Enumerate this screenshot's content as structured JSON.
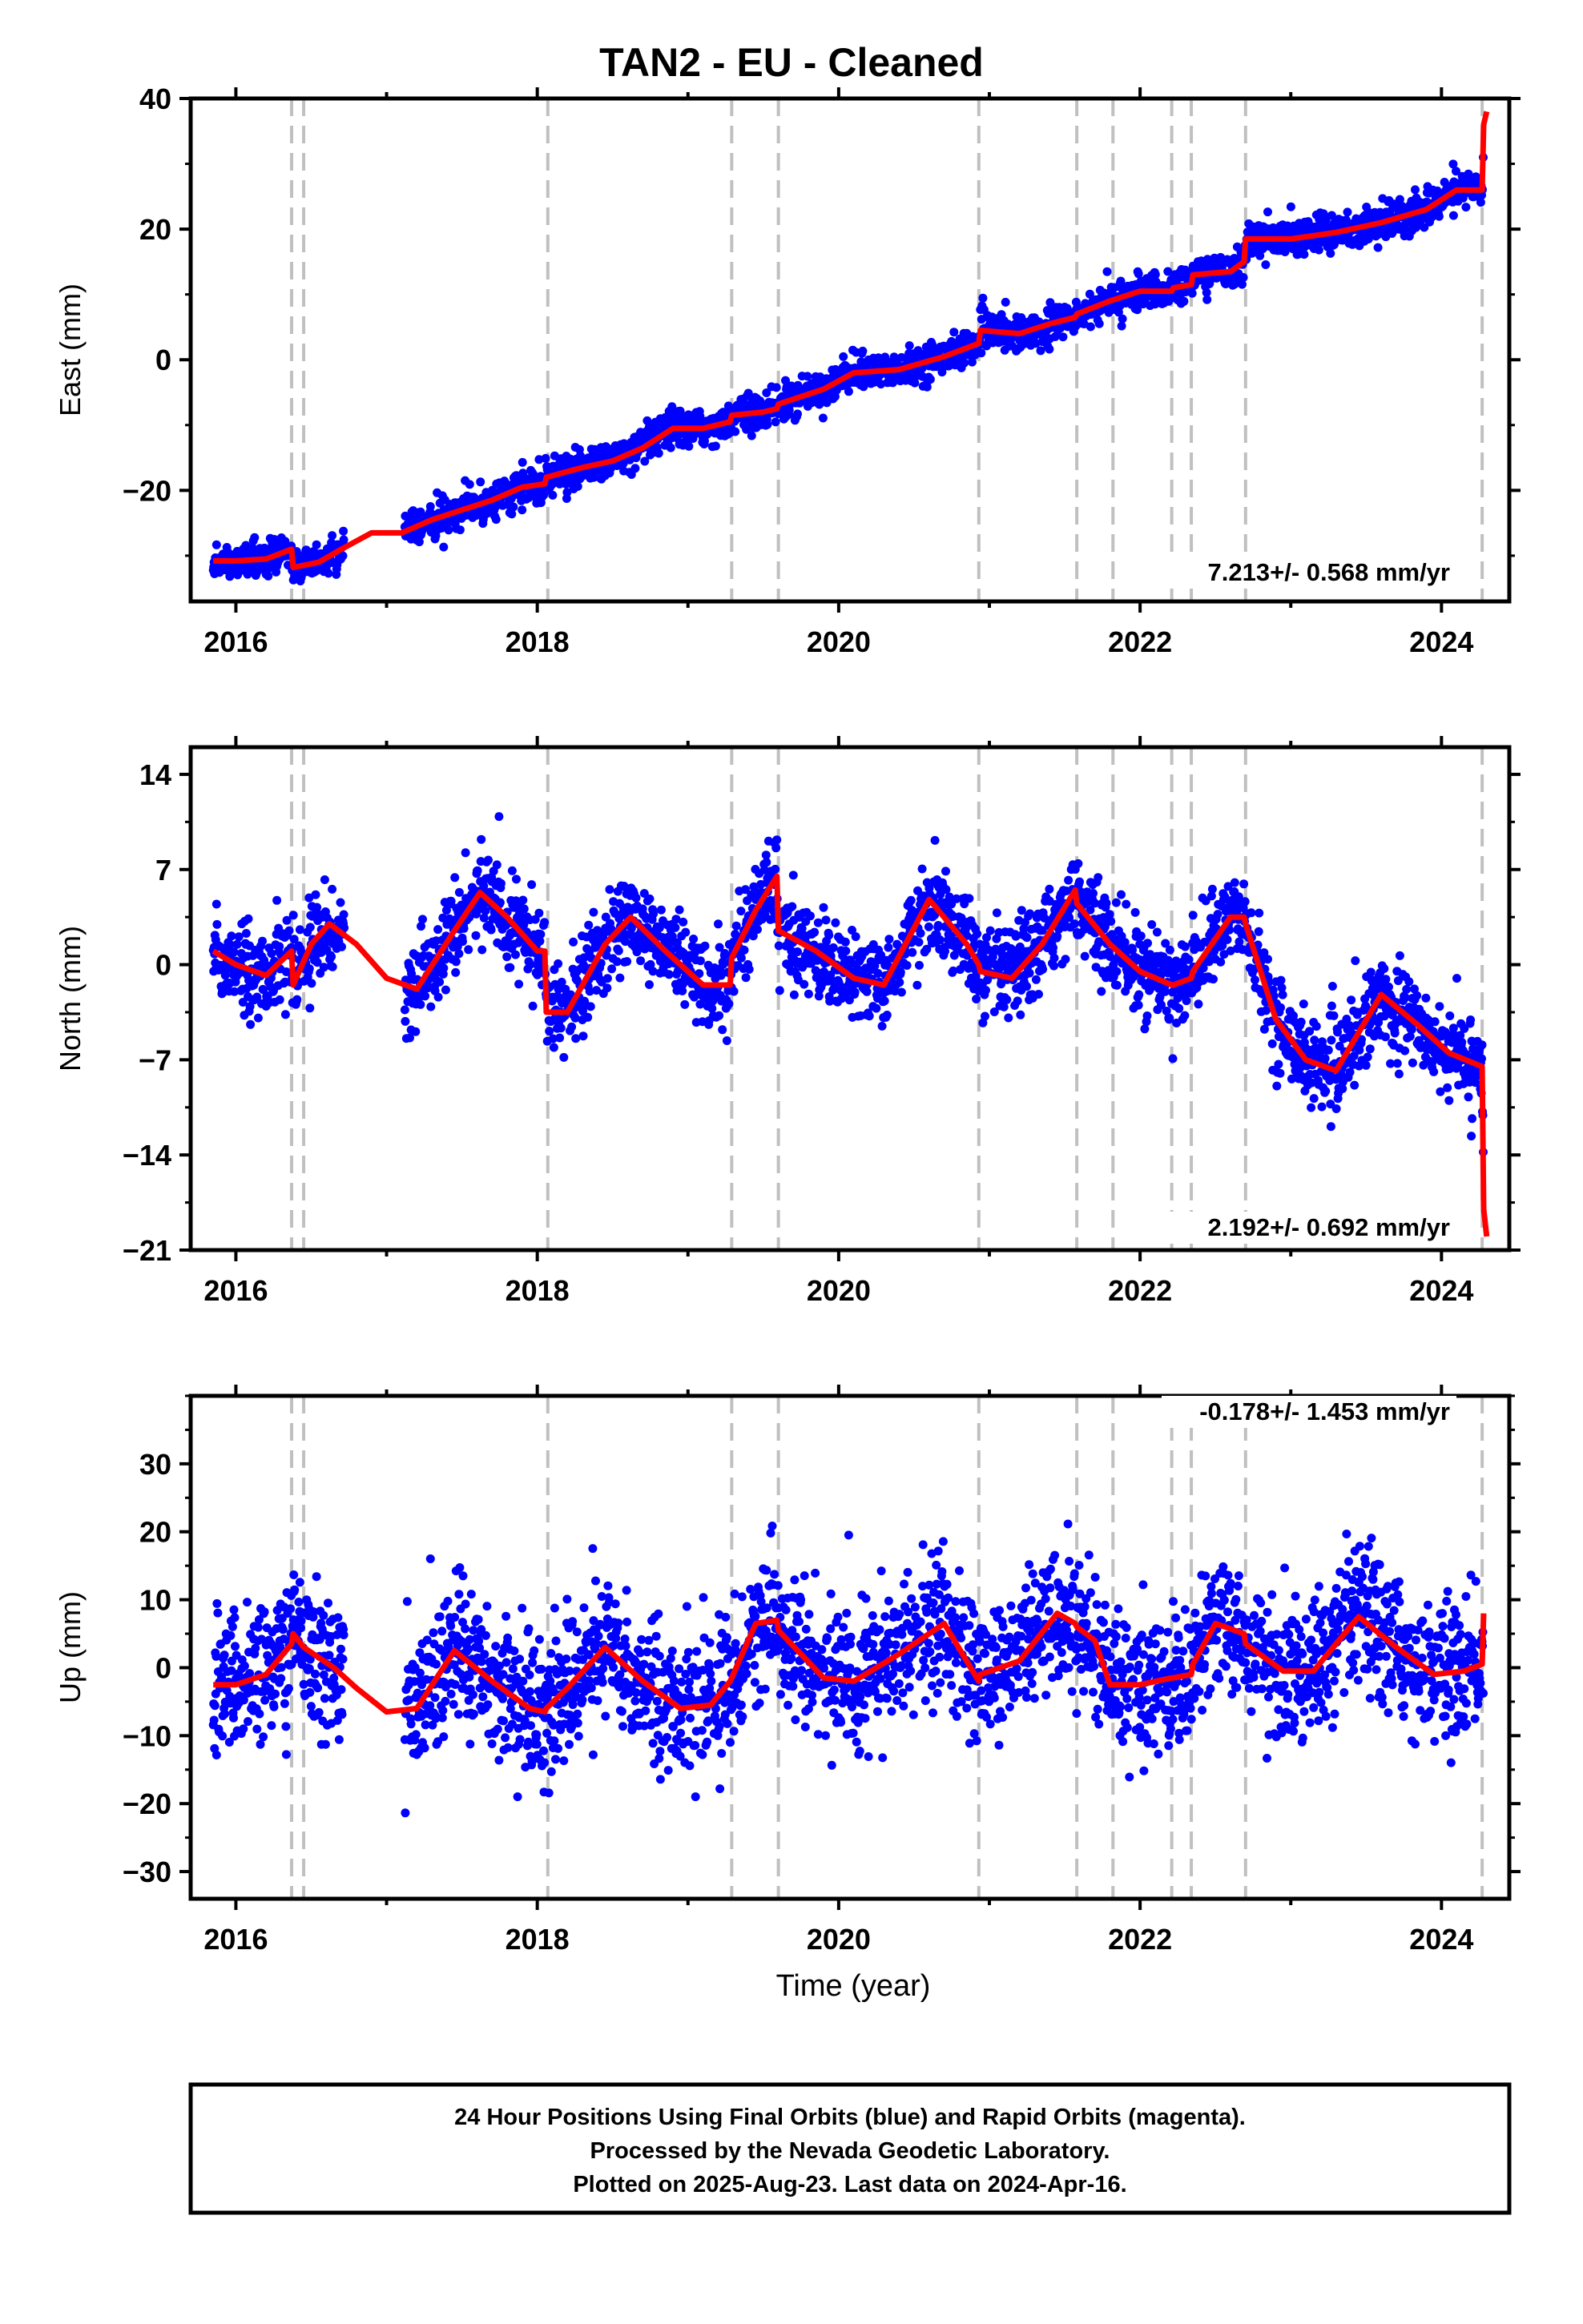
{
  "title": "TAN2  - EU - Cleaned",
  "colors": {
    "final_orbits": "#0000ff",
    "model": "#ff0000",
    "events": "#c0c0c0"
  },
  "chart_data": [
    {
      "type": "scatter",
      "ylabel": "East (mm)",
      "ylim": [
        -37,
        40
      ],
      "yticks": [
        -20,
        0,
        20,
        40
      ],
      "xlim": [
        2015.7,
        2024.45
      ],
      "xticks": [
        2016,
        2018,
        2020,
        2022,
        2024
      ],
      "rate_label": "7.213+/- 0.568 mm/yr",
      "series": [
        {
          "kind": "model",
          "x": [
            2015.85,
            2016.0,
            2016.2,
            2016.37,
            2016.38,
            2016.55,
            2016.7,
            2016.9,
            2017.1,
            2017.3,
            2017.5,
            2017.7,
            2017.9,
            2018.05,
            2018.06,
            2018.3,
            2018.5,
            2018.7,
            2018.9,
            2019.1,
            2019.28,
            2019.29,
            2019.5,
            2019.59,
            2019.6,
            2019.9,
            2020.1,
            2020.4,
            2020.7,
            2020.93,
            2020.94,
            2021.2,
            2021.4,
            2021.57,
            2021.58,
            2021.8,
            2022.0,
            2022.21,
            2022.22,
            2022.34,
            2022.35,
            2022.6,
            2022.69,
            2022.7,
            2023.0,
            2023.3,
            2023.6,
            2023.9,
            2024.1,
            2024.27,
            2024.28,
            2024.3
          ],
          "y": [
            -30.8,
            -30.8,
            -30.5,
            -29.0,
            -31.8,
            -31.0,
            -29.0,
            -26.5,
            -26.5,
            -24.5,
            -23.0,
            -21.5,
            -19.5,
            -19.0,
            -18.0,
            -16.5,
            -15.5,
            -13.5,
            -10.5,
            -10.5,
            -9.5,
            -8.5,
            -8.0,
            -7.5,
            -6.8,
            -4.5,
            -2.0,
            -1.5,
            0.5,
            2.5,
            4.5,
            4.0,
            5.5,
            6.5,
            7.0,
            9.0,
            10.5,
            10.5,
            11.0,
            11.5,
            13.0,
            13.5,
            15.0,
            18.5,
            18.5,
            19.5,
            21.0,
            23.0,
            26.0,
            26.0,
            36.0,
            38.0
          ]
        }
      ]
    },
    {
      "type": "scatter",
      "ylabel": "North (mm)",
      "ylim": [
        -21,
        16
      ],
      "yticks": [
        -21,
        -14,
        -7,
        0,
        7,
        14
      ],
      "xlim": [
        2015.7,
        2024.45
      ],
      "xticks": [
        2016,
        2018,
        2020,
        2022,
        2024
      ],
      "rate_label": "2.192+/- 0.692 mm/yr",
      "series": [
        {
          "kind": "model",
          "x": [
            2015.85,
            2016.0,
            2016.2,
            2016.37,
            2016.38,
            2016.5,
            2016.62,
            2016.8,
            2017.0,
            2017.2,
            2017.45,
            2017.62,
            2017.8,
            2018.0,
            2018.05,
            2018.06,
            2018.2,
            2018.45,
            2018.62,
            2018.85,
            2019.1,
            2019.28,
            2019.29,
            2019.45,
            2019.59,
            2019.6,
            2019.85,
            2020.1,
            2020.3,
            2020.6,
            2020.85,
            2020.93,
            2020.94,
            2021.15,
            2021.35,
            2021.57,
            2021.58,
            2021.8,
            2022.0,
            2022.21,
            2022.22,
            2022.34,
            2022.35,
            2022.6,
            2022.69,
            2022.7,
            2022.9,
            2023.1,
            2023.3,
            2023.6,
            2023.85,
            2024.05,
            2024.27,
            2024.28,
            2024.3
          ],
          "y": [
            1.0,
            0.0,
            -0.8,
            1.0,
            -1.5,
            1.5,
            3.0,
            1.5,
            -1.0,
            -1.8,
            2.5,
            5.3,
            3.5,
            1.0,
            1.0,
            -3.5,
            -3.5,
            1.5,
            3.5,
            1.0,
            -1.5,
            -1.5,
            0.5,
            4.0,
            6.5,
            2.5,
            1.0,
            -1.0,
            -1.5,
            4.8,
            1.5,
            0.0,
            -0.5,
            -1.0,
            1.5,
            5.5,
            4.5,
            1.5,
            -0.5,
            -1.5,
            -1.5,
            -1.0,
            -0.5,
            3.5,
            3.5,
            3.0,
            -4.0,
            -7.0,
            -7.8,
            -2.2,
            -4.5,
            -6.5,
            -7.5,
            -18.0,
            -20.0
          ]
        }
      ]
    },
    {
      "type": "scatter",
      "ylabel": "Up (mm)",
      "ylim": [
        -34,
        40
      ],
      "yticks": [
        -30,
        -20,
        -10,
        0,
        10,
        20,
        30
      ],
      "xlim": [
        2015.7,
        2024.45
      ],
      "xticks": [
        2016,
        2018,
        2020,
        2022,
        2024
      ],
      "rate_label": "-0.178+/- 1.453 mm/yr",
      "series": [
        {
          "kind": "model",
          "x": [
            2015.85,
            2016.0,
            2016.2,
            2016.37,
            2016.38,
            2016.45,
            2016.65,
            2016.8,
            2017.0,
            2017.2,
            2017.45,
            2017.7,
            2017.95,
            2018.05,
            2018.06,
            2018.2,
            2018.45,
            2018.7,
            2018.95,
            2019.15,
            2019.28,
            2019.29,
            2019.45,
            2019.59,
            2019.6,
            2019.9,
            2020.1,
            2020.4,
            2020.7,
            2020.93,
            2020.94,
            2021.2,
            2021.45,
            2021.57,
            2021.58,
            2021.7,
            2021.8,
            2022.0,
            2022.21,
            2022.22,
            2022.34,
            2022.35,
            2022.5,
            2022.69,
            2022.7,
            2022.95,
            2023.15,
            2023.45,
            2023.7,
            2023.95,
            2024.15,
            2024.27,
            2024.28
          ],
          "y": [
            -2.5,
            -2.5,
            -1.0,
            3.5,
            5.0,
            3.0,
            0.0,
            -3.0,
            -6.5,
            -6.0,
            2.5,
            -2.0,
            -6.0,
            -6.5,
            -6.0,
            -3.0,
            3.0,
            -2.0,
            -6.0,
            -5.5,
            -2.0,
            -1.5,
            6.5,
            7.0,
            5.5,
            -1.5,
            -2.0,
            2.0,
            6.5,
            -2.0,
            -1.0,
            1.0,
            8.0,
            6.5,
            6.0,
            4.0,
            -2.5,
            -2.5,
            -1.5,
            -1.5,
            -1.0,
            0.5,
            6.5,
            5.0,
            3.5,
            -0.5,
            -0.5,
            7.5,
            3.0,
            -1.0,
            -0.5,
            0.5,
            8.0
          ]
        }
      ]
    }
  ],
  "event_lines": [
    2016.37,
    2016.45,
    2018.07,
    2019.29,
    2019.6,
    2020.93,
    2021.58,
    2021.82,
    2022.21,
    2022.34,
    2022.7,
    2024.27
  ],
  "xlabel": "Time (year)",
  "footer": {
    "line1": "24 Hour Positions Using Final Orbits (blue) and Rapid Orbits (magenta).",
    "line2": "Processed by the Nevada Geodetic Laboratory.",
    "line3": "Plotted on 2025-Aug-23. Last data on 2024-Apr-16."
  }
}
